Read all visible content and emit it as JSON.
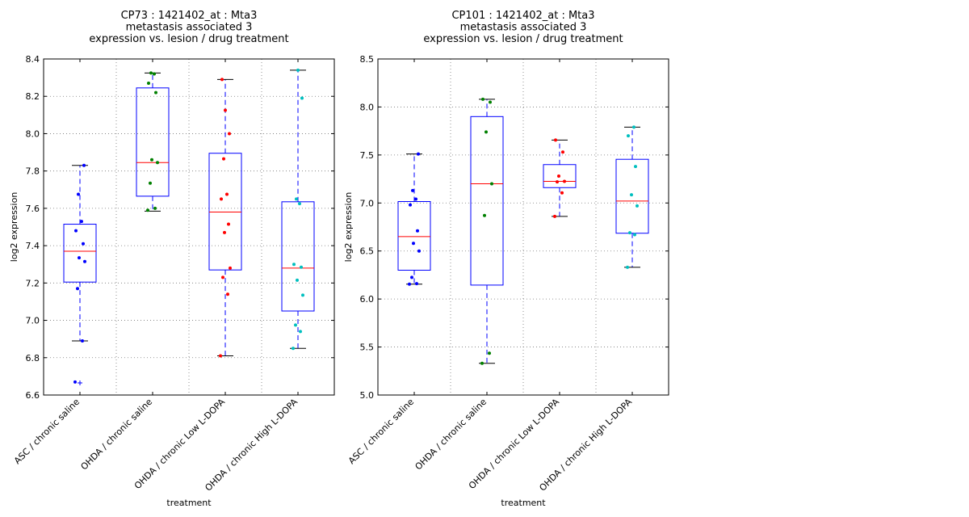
{
  "chart_data": [
    {
      "type": "boxplot",
      "title_lines": [
        "CP73 : 1421402_at : Mta3",
        "metastasis associated 3",
        "expression vs. lesion / drug treatment"
      ],
      "xlabel": "treatment",
      "ylabel": "log2 expression",
      "ylim": [
        6.6,
        8.4
      ],
      "yticks": [
        6.6,
        6.8,
        7.0,
        7.2,
        7.4,
        7.6,
        7.8,
        8.0,
        8.2,
        8.4
      ],
      "ytick_labels": [
        "6.6",
        "6.8",
        "7.0",
        "7.2",
        "7.4",
        "7.6",
        "7.8",
        "8.0",
        "8.2",
        "8.4"
      ],
      "grid": true,
      "categories": [
        "ASC / chronic saline",
        "OHDA / chronic saline",
        "OHDA / chronic Low L-DOPA",
        "OHDA / chronic High L-DOPA"
      ],
      "boxes": [
        {
          "q1": 7.205,
          "median": 7.37,
          "q3": 7.515,
          "whislo": 6.89,
          "whishi": 7.83,
          "fliers": [
            6.665
          ]
        },
        {
          "q1": 7.665,
          "median": 7.845,
          "q3": 8.245,
          "whislo": 7.585,
          "whishi": 8.325,
          "fliers": []
        },
        {
          "q1": 7.27,
          "median": 7.58,
          "q3": 7.895,
          "whislo": 6.81,
          "whishi": 8.29,
          "fliers": []
        },
        {
          "q1": 7.05,
          "median": 7.28,
          "q3": 7.635,
          "whislo": 6.85,
          "whishi": 8.34,
          "fliers": []
        }
      ],
      "points": [
        [
          6.67,
          6.89,
          7.17,
          7.315,
          7.335,
          7.41,
          7.48,
          7.53,
          7.675,
          7.83
        ],
        [
          7.59,
          7.6,
          7.735,
          7.845,
          7.86,
          8.22,
          8.27,
          8.32,
          8.325
        ],
        [
          6.81,
          7.14,
          7.23,
          7.28,
          7.47,
          7.515,
          7.65,
          7.675,
          7.865,
          8.0,
          8.125,
          8.29
        ],
        [
          6.85,
          6.94,
          6.975,
          7.135,
          7.215,
          7.285,
          7.3,
          7.625,
          7.65,
          8.19,
          8.34
        ]
      ],
      "point_colors": [
        "#0000ff",
        "#008000",
        "#ff0000",
        "#00bfbf"
      ]
    },
    {
      "type": "boxplot",
      "title_lines": [
        "CP101 : 1421402_at : Mta3",
        "metastasis associated 3",
        "expression vs. lesion / drug treatment"
      ],
      "xlabel": "treatment",
      "ylabel": "log2 expression",
      "ylim": [
        5.0,
        8.5
      ],
      "yticks": [
        5.0,
        5.5,
        6.0,
        6.5,
        7.0,
        7.5,
        8.0,
        8.5
      ],
      "ytick_labels": [
        "5.0",
        "5.5",
        "6.0",
        "6.5",
        "7.0",
        "7.5",
        "8.0",
        "8.5"
      ],
      "grid": true,
      "categories": [
        "ASC / chronic saline",
        "OHDA / chronic saline",
        "OHDA / chronic Low L-DOPA",
        "OHDA / chronic High L-DOPA"
      ],
      "boxes": [
        {
          "q1": 6.3,
          "median": 6.65,
          "q3": 7.015,
          "whislo": 6.155,
          "whishi": 7.51,
          "fliers": []
        },
        {
          "q1": 6.145,
          "median": 7.2,
          "q3": 7.9,
          "whislo": 5.33,
          "whishi": 8.08,
          "fliers": []
        },
        {
          "q1": 7.16,
          "median": 7.225,
          "q3": 7.4,
          "whislo": 6.86,
          "whishi": 7.655,
          "fliers": []
        },
        {
          "q1": 6.685,
          "median": 7.02,
          "q3": 7.455,
          "whislo": 6.33,
          "whishi": 7.79,
          "fliers": []
        }
      ],
      "points": [
        [
          6.155,
          6.16,
          6.225,
          6.5,
          6.58,
          6.71,
          6.98,
          7.04,
          7.13,
          7.51
        ],
        [
          5.33,
          5.435,
          6.87,
          7.2,
          7.74,
          8.05,
          8.08
        ],
        [
          6.86,
          7.105,
          7.22,
          7.225,
          7.28,
          7.53,
          7.655
        ],
        [
          6.33,
          6.67,
          6.69,
          6.97,
          7.085,
          7.38,
          7.7,
          7.79
        ]
      ],
      "point_colors": [
        "#0000ff",
        "#008000",
        "#ff0000",
        "#00bfbf"
      ]
    }
  ]
}
